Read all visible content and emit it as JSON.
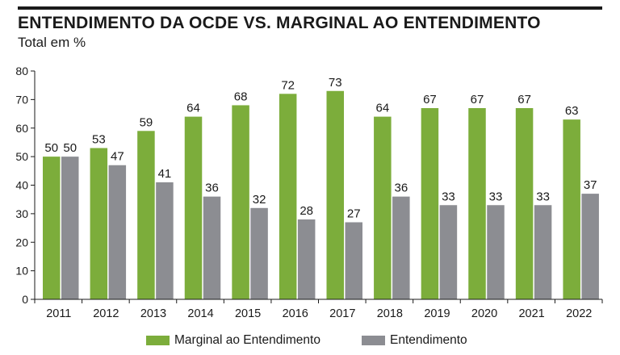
{
  "header": {
    "title": "ENTENDIMENTO DA OCDE VS. MARGINAL AO ENTENDIMENTO",
    "subtitle": "Total em %"
  },
  "legend": {
    "marginal": "Marginal ao Entendimento",
    "entendimento": "Entendimento"
  },
  "colors": {
    "green": "#7cad3b",
    "gray": "#8c8d92",
    "axis": "#1a1a1a"
  },
  "chart_data": {
    "type": "bar",
    "title": "ENTENDIMENTO DA OCDE VS. MARGINAL AO ENTENDIMENTO",
    "subtitle": "Total em %",
    "categories": [
      "2011",
      "2012",
      "2013",
      "2014",
      "2015",
      "2016",
      "2017",
      "2018",
      "2019",
      "2020",
      "2021",
      "2022"
    ],
    "series": [
      {
        "name": "Marginal ao Entendimento",
        "color": "#7cad3b",
        "values": [
          50,
          53,
          59,
          64,
          68,
          72,
          73,
          64,
          67,
          67,
          67,
          63
        ]
      },
      {
        "name": "Entendimento",
        "color": "#8c8d92",
        "values": [
          50,
          47,
          41,
          36,
          32,
          28,
          27,
          36,
          33,
          33,
          33,
          37
        ]
      }
    ],
    "ylim": [
      0,
      80
    ],
    "yticks": [
      0,
      10,
      20,
      30,
      40,
      50,
      60,
      70,
      80
    ],
    "xlabel": "",
    "ylabel": "",
    "grid": false,
    "legend_position": "bottom"
  }
}
